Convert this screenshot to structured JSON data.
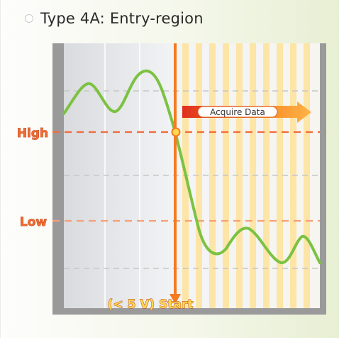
{
  "title": "Type 4A: Entry-region",
  "labels": {
    "high": "High",
    "low": "Low",
    "acquire": "Acquire Data",
    "start": "(< 5 V) Start"
  },
  "colors": {
    "accent_orange": "#f47b20",
    "level_line": "#f26b3a",
    "signal": "#7cc242",
    "stripe": "#ffe39a",
    "label_fill": "#f06c31"
  },
  "icons": [
    "radio-icon",
    "arrow-right-icon",
    "arrow-down-icon",
    "trigger-point-icon"
  ]
}
